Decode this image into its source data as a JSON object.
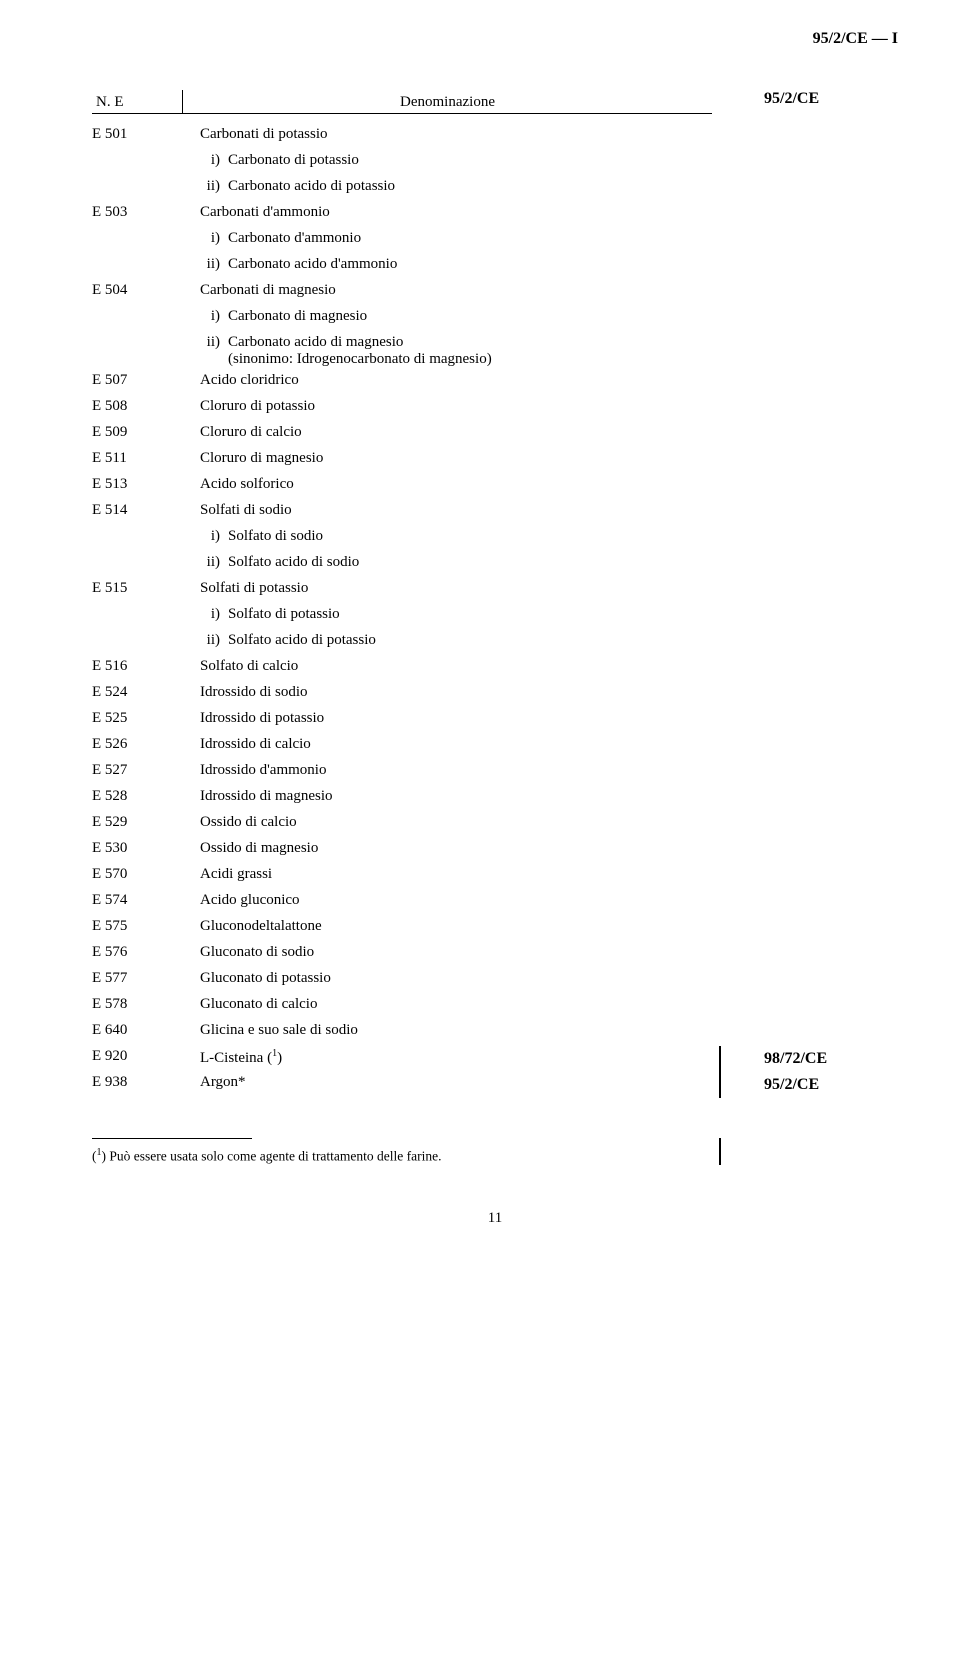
{
  "top_right": "95/2/CE — I",
  "header": {
    "col1": "N. E",
    "col2": "Denominazione"
  },
  "side_95": "95/2/CE",
  "e501": {
    "code": "E 501",
    "denom": "Carbonati di potassio",
    "sub": [
      {
        "lbl": "i)",
        "txt": "Carbonato di potassio"
      },
      {
        "lbl": "ii)",
        "txt": "Carbonato acido di potassio"
      }
    ]
  },
  "e503": {
    "code": "E 503",
    "denom": "Carbonati d'ammonio",
    "sub": [
      {
        "lbl": "i)",
        "txt": "Carbonato d'ammonio"
      },
      {
        "lbl": "ii)",
        "txt": "Carbonato acido d'ammonio"
      }
    ]
  },
  "e504": {
    "code": "E 504",
    "denom": "Carbonati di magnesio",
    "sub": [
      {
        "lbl": "i)",
        "txt": "Carbonato di magnesio"
      },
      {
        "lbl": "ii)",
        "txt": "Carbonato acido di magnesio",
        "txt2": "(sinonimo: Idrogenocarbonato di magnesio)"
      }
    ]
  },
  "e507": {
    "code": "E 507",
    "denom": "Acido cloridrico"
  },
  "e508": {
    "code": "E 508",
    "denom": "Cloruro di potassio"
  },
  "e509": {
    "code": "E 509",
    "denom": "Cloruro di calcio"
  },
  "e511": {
    "code": "E 511",
    "denom": "Cloruro di magnesio"
  },
  "e513": {
    "code": "E 513",
    "denom": "Acido solforico"
  },
  "e514": {
    "code": "E 514",
    "denom": "Solfati di sodio",
    "sub": [
      {
        "lbl": "i)",
        "txt": "Solfato di sodio"
      },
      {
        "lbl": "ii)",
        "txt": "Solfato acido di sodio"
      }
    ]
  },
  "e515": {
    "code": "E 515",
    "denom": "Solfati di potassio",
    "sub": [
      {
        "lbl": "i)",
        "txt": "Solfato di potassio"
      },
      {
        "lbl": "ii)",
        "txt": "Solfato acido di potassio"
      }
    ]
  },
  "e516": {
    "code": "E 516",
    "denom": "Solfato di calcio"
  },
  "e524": {
    "code": "E 524",
    "denom": "Idrossido di sodio"
  },
  "e525": {
    "code": "E 525",
    "denom": "Idrossido di potassio"
  },
  "e526": {
    "code": "E 526",
    "denom": "Idrossido di calcio"
  },
  "e527": {
    "code": "E 527",
    "denom": "Idrossido d'ammonio"
  },
  "e528": {
    "code": "E 528",
    "denom": "Idrossido di magnesio"
  },
  "e529": {
    "code": "E 529",
    "denom": "Ossido di calcio"
  },
  "e530": {
    "code": "E 530",
    "denom": "Ossido di magnesio"
  },
  "e570": {
    "code": "E 570",
    "denom": "Acidi grassi"
  },
  "e574": {
    "code": "E 574",
    "denom": "Acido gluconico"
  },
  "e575": {
    "code": "E 575",
    "denom": "Gluconodeltalattone"
  },
  "e576": {
    "code": "E 576",
    "denom": "Gluconato di sodio"
  },
  "e577": {
    "code": "E 577",
    "denom": "Gluconato di potassio"
  },
  "e578": {
    "code": "E 578",
    "denom": "Gluconato di calcio"
  },
  "e640": {
    "code": "E 640",
    "denom": "Glicina e suo sale di sodio"
  },
  "e920": {
    "code": "E 920",
    "denom_pre": "L-Cisteina (",
    "denom_sup": "1",
    "denom_post": ")"
  },
  "e938": {
    "code": "E 938",
    "denom": "Argon*"
  },
  "side_98": "98/72/CE",
  "side_95b": "95/2/CE",
  "footnote_pre": "(",
  "footnote_sup": "1",
  "footnote_post": ") Può essere usata solo come agente di trattamento delle farine.",
  "page_num": "11"
}
